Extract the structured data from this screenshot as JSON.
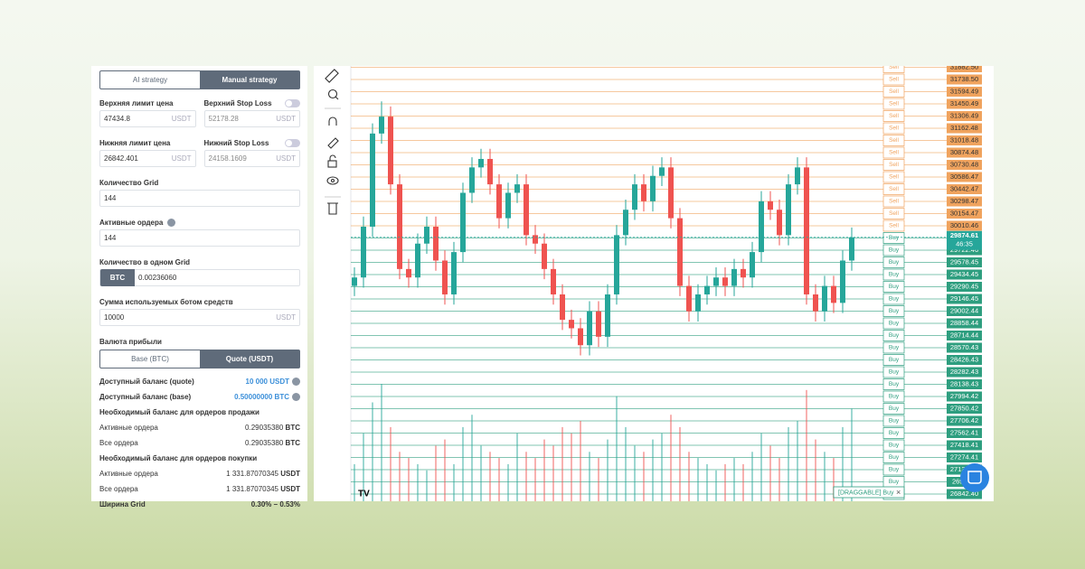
{
  "panel": {
    "strategy_tabs": [
      "AI strategy",
      "Manual strategy"
    ],
    "upper_limit": {
      "label": "Верхняя лимит цена",
      "value": "47434.8",
      "unit": "USDT"
    },
    "upper_stop": {
      "label": "Верхний Stop Loss",
      "value": "52178.28",
      "unit": "USDT"
    },
    "lower_limit": {
      "label": "Нижняя лимит цена",
      "value": "26842.401",
      "unit": "USDT"
    },
    "lower_stop": {
      "label": "Нижний Stop Loss",
      "value": "24158.1609",
      "unit": "USDT"
    },
    "grid_count": {
      "label": "Количество Grid",
      "value": "144"
    },
    "active_orders": {
      "label": "Активные ордера",
      "value": "144"
    },
    "per_grid": {
      "label": "Количество в одном Grid",
      "currency": "BTC",
      "value": "0.00236060"
    },
    "bot_funds": {
      "label": "Сумма используемых ботом средств",
      "value": "10000",
      "unit": "USDT"
    },
    "profit_currency": {
      "label": "Валюта прибыли",
      "options": [
        "Base (BTC)",
        "Quote (USDT)"
      ]
    },
    "balances": [
      {
        "label": "Доступный баланс (quote)",
        "value": "10 000 USDT"
      },
      {
        "label": "Доступный баланс (base)",
        "value": "0.50000000 BTC"
      }
    ],
    "sell_section": {
      "title": "Необходимый баланс для ордеров продажи",
      "rows": [
        {
          "label": "Активные ордера",
          "value": "0.29035380",
          "unit": "BTC"
        },
        {
          "label": "Все ордера",
          "value": "0.29035380",
          "unit": "BTC"
        }
      ]
    },
    "buy_section": {
      "title": "Необходимый баланс для ордеров покупки",
      "rows": [
        {
          "label": "Активные ордера",
          "value": "1 331.87070345",
          "unit": "USDT"
        },
        {
          "label": "Все ордера",
          "value": "1 331.87070345",
          "unit": "USDT"
        }
      ]
    },
    "grid_width": {
      "label": "Ширина Grid",
      "value": "0.30% – 0.53%"
    }
  },
  "chart_data": {
    "type": "candlestick",
    "ylim": [
      26757,
      31898.5
    ],
    "up_color": "#26a69a",
    "down_color": "#ef5350",
    "sell_color": "#f0a35e",
    "buy_color": "#2e9e7f",
    "open": [
      29300,
      29400,
      30000,
      31100,
      31300,
      30500,
      29500,
      29400,
      29800,
      30000,
      29600,
      29200,
      29700,
      30400,
      30700,
      30800,
      30500,
      30100,
      30400,
      30500,
      29900,
      29800,
      29500,
      29200,
      28900,
      28800,
      28600,
      29000,
      28700,
      29200,
      29900,
      30200,
      30500,
      30300,
      30600,
      30700,
      30100,
      29300,
      29000,
      29200,
      29300,
      29400,
      29300,
      29500,
      29400,
      29700,
      30300,
      30200,
      29900,
      30500,
      30700,
      29200,
      29000,
      29300,
      29100,
      29600
    ],
    "high": [
      29520,
      30120,
      31220,
      31480,
      31420,
      30620,
      29620,
      29920,
      30120,
      30120,
      29720,
      29820,
      30520,
      30820,
      30920,
      30920,
      30620,
      30520,
      30620,
      30620,
      30020,
      29920,
      29620,
      29320,
      29020,
      28920,
      29120,
      29120,
      29320,
      30020,
      30320,
      30620,
      30620,
      30720,
      30820,
      30820,
      30220,
      29420,
      29320,
      29420,
      29520,
      29520,
      29620,
      29620,
      29820,
      30420,
      30420,
      30320,
      30620,
      30820,
      30820,
      29320,
      29420,
      29420,
      29720,
      29990
    ],
    "low": [
      29180,
      29280,
      29880,
      30980,
      30380,
      29380,
      29280,
      29280,
      29680,
      29480,
      29080,
      29080,
      29580,
      30280,
      30580,
      30380,
      29980,
      29980,
      30280,
      29780,
      29680,
      29380,
      29080,
      28780,
      28680,
      28480,
      28480,
      28580,
      28580,
      29080,
      29780,
      30080,
      30180,
      30180,
      30480,
      29980,
      29180,
      28880,
      28880,
      29080,
      29180,
      29180,
      29180,
      29280,
      29280,
      29580,
      30080,
      29780,
      29780,
      30380,
      29080,
      28880,
      28880,
      28980,
      28980,
      29480
    ],
    "close": [
      29400,
      30000,
      31100,
      31300,
      30500,
      29500,
      29400,
      29800,
      30000,
      29600,
      29200,
      29700,
      30400,
      30700,
      30800,
      30500,
      30100,
      30400,
      30500,
      29900,
      29800,
      29500,
      29200,
      28900,
      28800,
      28600,
      29000,
      28700,
      29200,
      29900,
      30200,
      30500,
      30300,
      30600,
      30700,
      30100,
      29300,
      29000,
      29200,
      29300,
      29400,
      29300,
      29500,
      29400,
      29700,
      30300,
      30200,
      29900,
      30500,
      30700,
      29200,
      29000,
      29300,
      29100,
      29600,
      29874.61
    ],
    "volume": [
      30,
      55,
      80,
      95,
      60,
      40,
      35,
      30,
      25,
      45,
      50,
      30,
      60,
      70,
      45,
      40,
      35,
      30,
      55,
      40,
      35,
      50,
      45,
      60,
      55,
      65,
      40,
      35,
      50,
      85,
      60,
      45,
      40,
      50,
      55,
      70,
      60,
      40,
      35,
      30,
      25,
      30,
      35,
      30,
      40,
      55,
      45,
      35,
      60,
      65,
      90,
      50,
      40,
      35,
      60,
      75
    ],
    "levels": [
      {
        "side": "Sell",
        "price": {
          "value": 31882.5,
          "label": "31882.50"
        }
      },
      {
        "side": "Sell",
        "price": {
          "value": 31738.5,
          "label": "31738.50"
        }
      },
      {
        "side": "Sell",
        "price": 31594.49
      },
      {
        "side": "Sell",
        "price": 31450.49
      },
      {
        "side": "Sell",
        "price": 31306.49
      },
      {
        "side": "Sell",
        "price": 31162.48
      },
      {
        "side": "Sell",
        "price": 31018.48
      },
      {
        "side": "Sell",
        "price": 30874.48
      },
      {
        "side": "Sell",
        "price": 30730.48
      },
      {
        "side": "Sell",
        "price": 30586.47
      },
      {
        "side": "Sell",
        "price": 30442.47
      },
      {
        "side": "Sell",
        "price": 30298.47
      },
      {
        "side": "Sell",
        "price": 30154.47
      },
      {
        "side": "Sell",
        "price": 30010.46
      },
      {
        "side": "Buy",
        "price": 29866.46
      },
      {
        "side": "Buy",
        "price": 29722.46
      },
      {
        "side": "Buy",
        "price": 29578.45
      },
      {
        "side": "Buy",
        "price": 29434.45
      },
      {
        "side": "Buy",
        "price": 29290.45
      },
      {
        "side": "Buy",
        "price": 29146.45
      },
      {
        "side": "Buy",
        "price": 29002.44
      },
      {
        "side": "Buy",
        "price": 28858.44
      },
      {
        "side": "Buy",
        "price": 28714.44
      },
      {
        "side": "Buy",
        "price": 28570.43
      },
      {
        "side": "Buy",
        "price": 28426.43
      },
      {
        "side": "Buy",
        "price": 28282.43
      },
      {
        "side": "Buy",
        "price": 28138.43
      },
      {
        "side": "Buy",
        "price": 27994.42
      },
      {
        "side": "Buy",
        "price": 27850.42
      },
      {
        "side": "Buy",
        "price": 27706.42
      },
      {
        "side": "Buy",
        "price": 27562.41
      },
      {
        "side": "Buy",
        "price": 27418.41
      },
      {
        "side": "Buy",
        "price": 27274.41
      },
      {
        "side": "Buy",
        "price": 27130.41
      },
      {
        "side": "Buy",
        "price": 26986.4
      },
      {
        "side": "Buy",
        "price": {
          "value": 26842.4,
          "label": "26842.40"
        }
      }
    ],
    "current_price": 29874.61,
    "countdown": "46:35",
    "draggable_label": "[DRAGGABLE] Buy",
    "close_label": "×"
  }
}
